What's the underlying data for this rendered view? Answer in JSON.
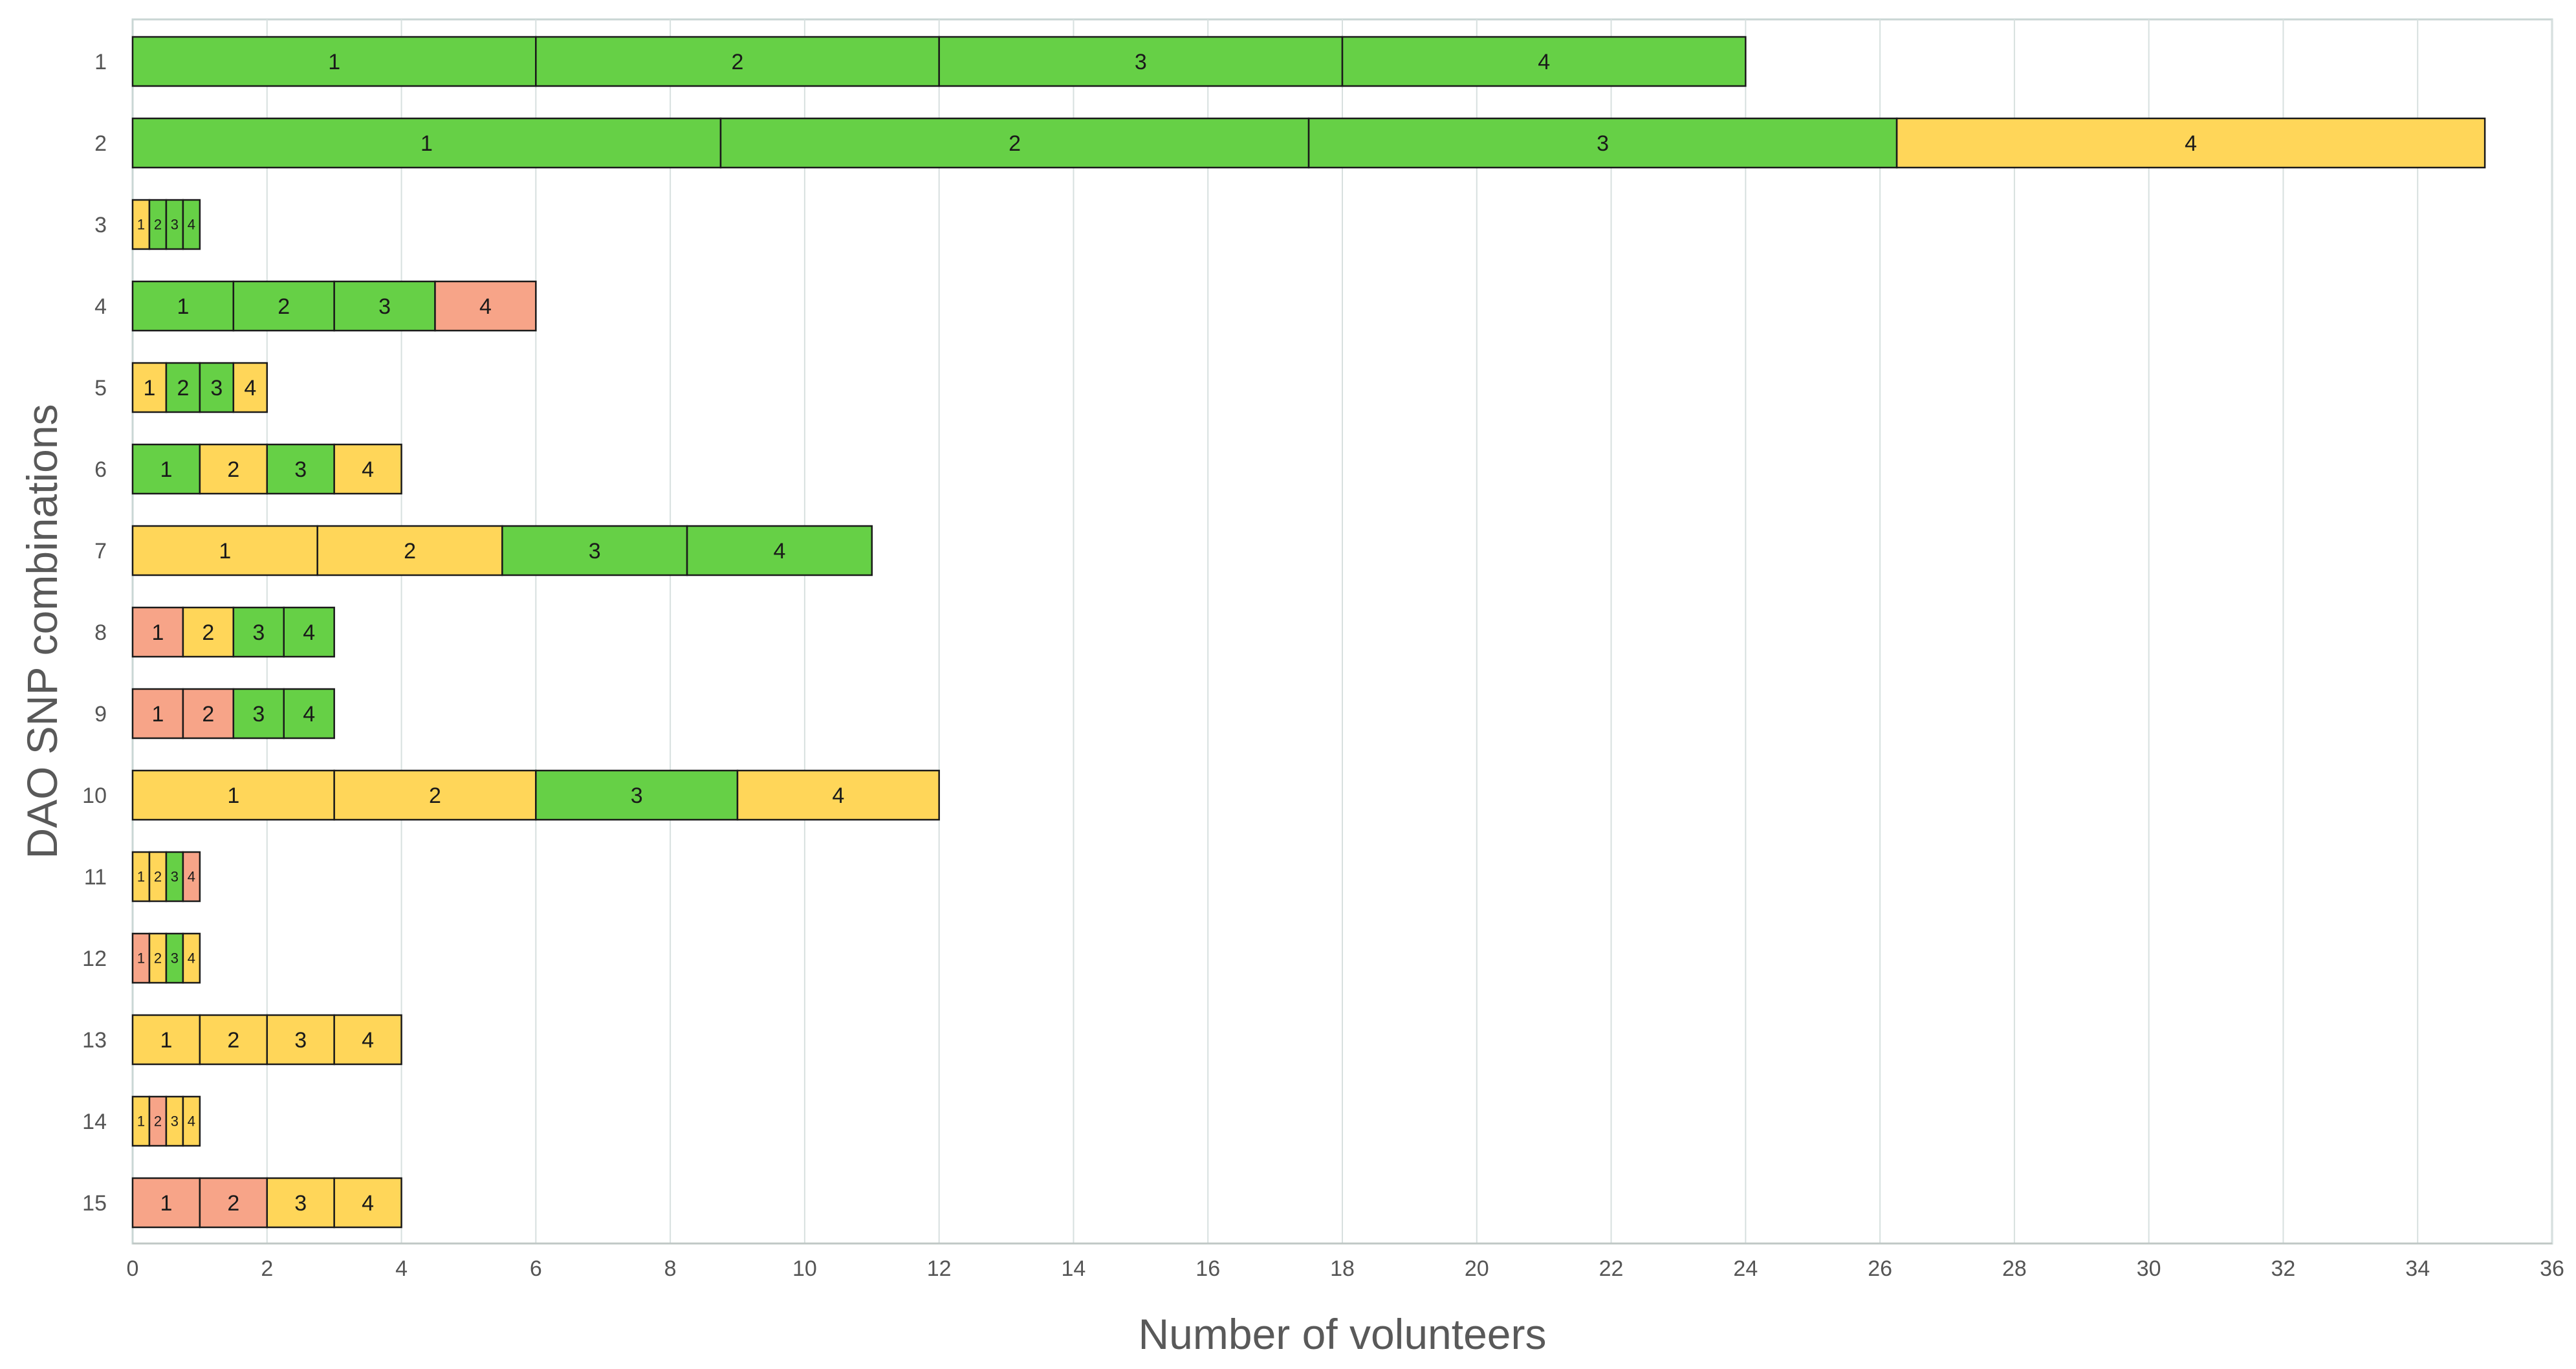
{
  "chart_data": {
    "type": "bar",
    "orientation": "horizontal",
    "stacked": true,
    "title": "",
    "xlabel": "Number of volunteers",
    "ylabel": "DAO  SNP combinations",
    "xlim": [
      0,
      36
    ],
    "x_ticks": [
      0,
      2,
      4,
      6,
      8,
      10,
      12,
      14,
      16,
      18,
      20,
      22,
      24,
      26,
      28,
      30,
      32,
      34,
      36
    ],
    "grid": "vertical",
    "colors": {
      "green": "#66d046",
      "yellow": "#ffd659",
      "salmon": "#f7a488",
      "edge": "#1a1a1a",
      "grid": "#d7e0df"
    },
    "categories": [
      "1",
      "2",
      "3",
      "4",
      "5",
      "6",
      "7",
      "8",
      "9",
      "10",
      "11",
      "12",
      "13",
      "14",
      "15"
    ],
    "rows": [
      {
        "category": "1",
        "total": 24,
        "segments": [
          {
            "label": "1",
            "value": 6,
            "color": "green"
          },
          {
            "label": "2",
            "value": 6,
            "color": "green"
          },
          {
            "label": "3",
            "value": 6,
            "color": "green"
          },
          {
            "label": "4",
            "value": 6,
            "color": "green"
          }
        ]
      },
      {
        "category": "2",
        "total": 35,
        "segments": [
          {
            "label": "1",
            "value": 8.75,
            "color": "green"
          },
          {
            "label": "2",
            "value": 8.75,
            "color": "green"
          },
          {
            "label": "3",
            "value": 8.75,
            "color": "green"
          },
          {
            "label": "4",
            "value": 8.75,
            "color": "yellow"
          }
        ]
      },
      {
        "category": "3",
        "total": 1,
        "segments": [
          {
            "label": "1",
            "value": 0.25,
            "color": "yellow"
          },
          {
            "label": "2",
            "value": 0.25,
            "color": "green"
          },
          {
            "label": "3",
            "value": 0.25,
            "color": "green"
          },
          {
            "label": "4",
            "value": 0.25,
            "color": "green"
          }
        ]
      },
      {
        "category": "4",
        "total": 6,
        "segments": [
          {
            "label": "1",
            "value": 1.5,
            "color": "green"
          },
          {
            "label": "2",
            "value": 1.5,
            "color": "green"
          },
          {
            "label": "3",
            "value": 1.5,
            "color": "green"
          },
          {
            "label": "4",
            "value": 1.5,
            "color": "salmon"
          }
        ]
      },
      {
        "category": "5",
        "total": 2,
        "segments": [
          {
            "label": "1",
            "value": 0.5,
            "color": "yellow"
          },
          {
            "label": "2",
            "value": 0.5,
            "color": "green"
          },
          {
            "label": "3",
            "value": 0.5,
            "color": "green"
          },
          {
            "label": "4",
            "value": 0.5,
            "color": "yellow"
          }
        ]
      },
      {
        "category": "6",
        "total": 4,
        "segments": [
          {
            "label": "1",
            "value": 1,
            "color": "green"
          },
          {
            "label": "2",
            "value": 1,
            "color": "yellow"
          },
          {
            "label": "3",
            "value": 1,
            "color": "green"
          },
          {
            "label": "4",
            "value": 1,
            "color": "yellow"
          }
        ]
      },
      {
        "category": "7",
        "total": 11,
        "segments": [
          {
            "label": "1",
            "value": 2.75,
            "color": "yellow"
          },
          {
            "label": "2",
            "value": 2.75,
            "color": "yellow"
          },
          {
            "label": "3",
            "value": 2.75,
            "color": "green"
          },
          {
            "label": "4",
            "value": 2.75,
            "color": "green"
          }
        ]
      },
      {
        "category": "8",
        "total": 3,
        "segments": [
          {
            "label": "1",
            "value": 0.75,
            "color": "salmon"
          },
          {
            "label": "2",
            "value": 0.75,
            "color": "yellow"
          },
          {
            "label": "3",
            "value": 0.75,
            "color": "green"
          },
          {
            "label": "4",
            "value": 0.75,
            "color": "green"
          }
        ]
      },
      {
        "category": "9",
        "total": 3,
        "segments": [
          {
            "label": "1",
            "value": 0.75,
            "color": "salmon"
          },
          {
            "label": "2",
            "value": 0.75,
            "color": "salmon"
          },
          {
            "label": "3",
            "value": 0.75,
            "color": "green"
          },
          {
            "label": "4",
            "value": 0.75,
            "color": "green"
          }
        ]
      },
      {
        "category": "10",
        "total": 12,
        "segments": [
          {
            "label": "1",
            "value": 3,
            "color": "yellow"
          },
          {
            "label": "2",
            "value": 3,
            "color": "yellow"
          },
          {
            "label": "3",
            "value": 3,
            "color": "green"
          },
          {
            "label": "4",
            "value": 3,
            "color": "yellow"
          }
        ]
      },
      {
        "category": "11",
        "total": 1,
        "segments": [
          {
            "label": "1",
            "value": 0.25,
            "color": "yellow"
          },
          {
            "label": "2",
            "value": 0.25,
            "color": "yellow"
          },
          {
            "label": "3",
            "value": 0.25,
            "color": "green"
          },
          {
            "label": "4",
            "value": 0.25,
            "color": "salmon"
          }
        ]
      },
      {
        "category": "12",
        "total": 1,
        "segments": [
          {
            "label": "1",
            "value": 0.25,
            "color": "salmon"
          },
          {
            "label": "2",
            "value": 0.25,
            "color": "yellow"
          },
          {
            "label": "3",
            "value": 0.25,
            "color": "green"
          },
          {
            "label": "4",
            "value": 0.25,
            "color": "yellow"
          }
        ]
      },
      {
        "category": "13",
        "total": 4,
        "segments": [
          {
            "label": "1",
            "value": 1,
            "color": "yellow"
          },
          {
            "label": "2",
            "value": 1,
            "color": "yellow"
          },
          {
            "label": "3",
            "value": 1,
            "color": "yellow"
          },
          {
            "label": "4",
            "value": 1,
            "color": "yellow"
          }
        ]
      },
      {
        "category": "14",
        "total": 1,
        "segments": [
          {
            "label": "1",
            "value": 0.25,
            "color": "yellow"
          },
          {
            "label": "2",
            "value": 0.25,
            "color": "salmon"
          },
          {
            "label": "3",
            "value": 0.25,
            "color": "yellow"
          },
          {
            "label": "4",
            "value": 0.25,
            "color": "yellow"
          }
        ]
      },
      {
        "category": "15",
        "total": 4,
        "segments": [
          {
            "label": "1",
            "value": 1,
            "color": "salmon"
          },
          {
            "label": "2",
            "value": 1,
            "color": "salmon"
          },
          {
            "label": "3",
            "value": 1,
            "color": "yellow"
          },
          {
            "label": "4",
            "value": 1,
            "color": "yellow"
          }
        ]
      }
    ]
  }
}
